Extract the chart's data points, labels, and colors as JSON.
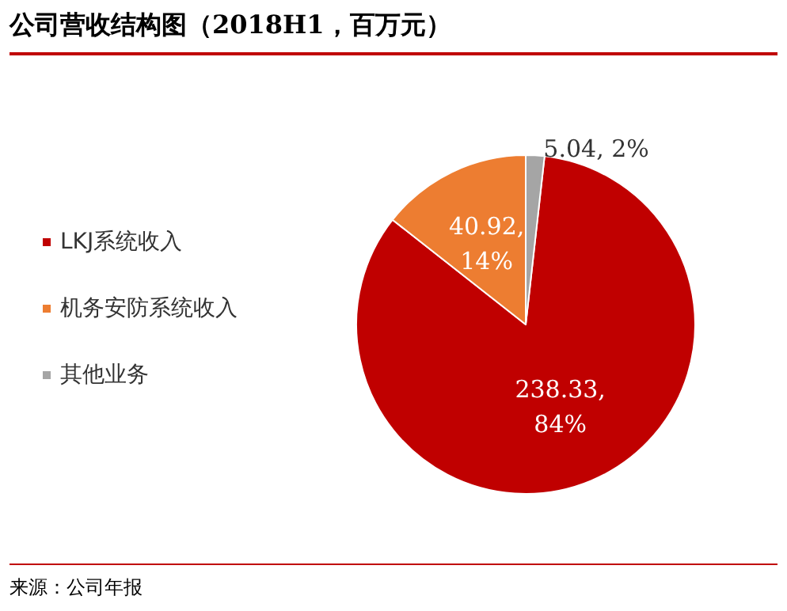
{
  "chart_data": {
    "type": "pie",
    "title": "公司营收结构图（2018H1，百万元）",
    "categories": [
      "LKJ系统收入",
      "机务安防系统收入",
      "其他业务"
    ],
    "values": [
      238.33,
      40.92,
      5.04
    ],
    "colors": [
      "#c00000",
      "#ed7d31",
      "#a5a5a5"
    ],
    "value_labels": [
      "238.33,\n84%",
      "40.92,\n14%",
      "5.04, 2%"
    ],
    "legend": "left",
    "annotations": [
      "来源：公司年报"
    ]
  }
}
